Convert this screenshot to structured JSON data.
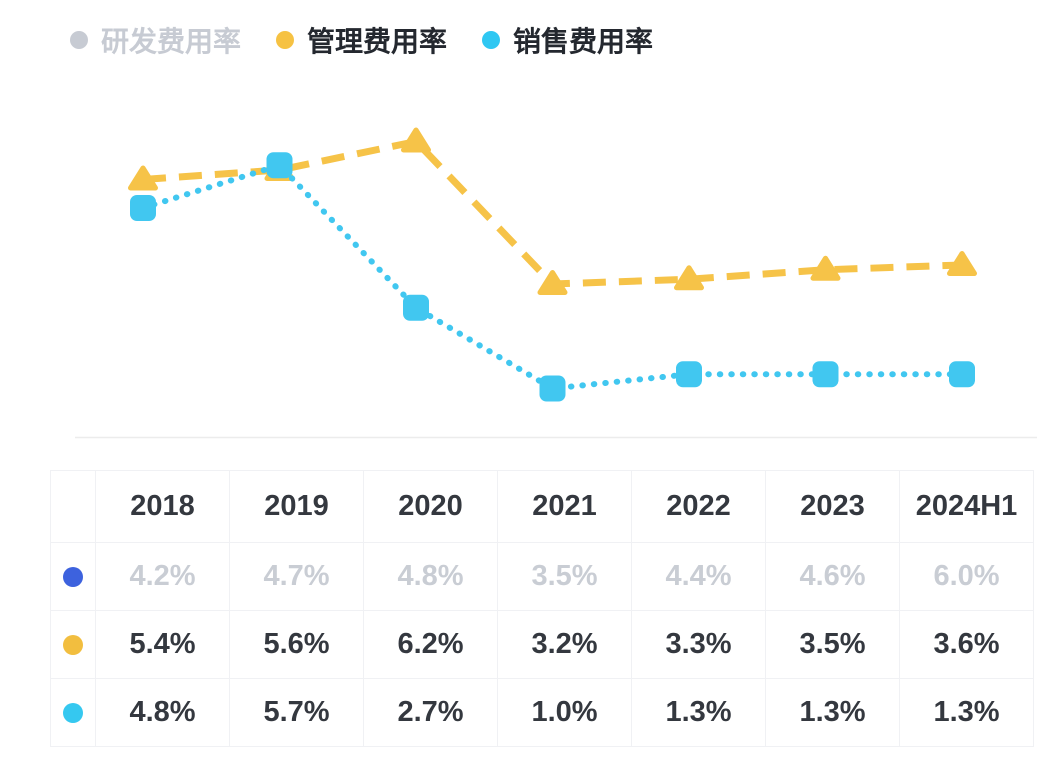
{
  "legend": {
    "items": [
      {
        "label": "研发费用率",
        "color": "#c7cbd3",
        "disabled": true
      },
      {
        "label": "管理费用率",
        "color": "#f6c243",
        "disabled": false
      },
      {
        "label": "销售费用率",
        "color": "#2fc7f2",
        "disabled": false
      }
    ]
  },
  "chart_data": {
    "type": "line",
    "categories": [
      "2018",
      "2019",
      "2020",
      "2021",
      "2022",
      "2023",
      "2024H1"
    ],
    "series": [
      {
        "name": "研发费用率",
        "values": [
          4.2,
          4.7,
          4.8,
          3.5,
          4.4,
          4.6,
          6.0
        ],
        "color": "#3d62de",
        "marker": "circle",
        "line": "solid",
        "visible": false
      },
      {
        "name": "管理费用率",
        "values": [
          5.4,
          5.6,
          6.2,
          3.2,
          3.3,
          3.5,
          3.6
        ],
        "color": "#f6c348",
        "marker": "triangle",
        "line": "dashed",
        "visible": true
      },
      {
        "name": "销售费用率",
        "values": [
          4.8,
          5.7,
          2.7,
          1.0,
          1.3,
          1.3,
          1.3
        ],
        "color": "#41c7f0",
        "marker": "square",
        "line": "dotted",
        "visible": true
      }
    ],
    "unit": "%",
    "ylim": [
      0,
      7.5
    ],
    "grid": false,
    "legend_position": "top-left",
    "baseline_color": "#ececec"
  },
  "table": {
    "columns": [
      "2018",
      "2019",
      "2020",
      "2021",
      "2022",
      "2023",
      "2024H1"
    ],
    "rows": [
      {
        "series": "研发费用率",
        "dot_color": "#3d62de",
        "muted": true,
        "values": [
          "4.2%",
          "4.7%",
          "4.8%",
          "3.5%",
          "4.4%",
          "4.6%",
          "6.0%"
        ]
      },
      {
        "series": "管理费用率",
        "dot_color": "#f2be3f",
        "muted": false,
        "values": [
          "5.4%",
          "5.6%",
          "6.2%",
          "3.2%",
          "3.3%",
          "3.5%",
          "3.6%"
        ]
      },
      {
        "series": "销售费用率",
        "dot_color": "#35c8f0",
        "muted": false,
        "values": [
          "4.8%",
          "5.7%",
          "2.7%",
          "1.0%",
          "1.3%",
          "1.3%",
          "1.3%"
        ]
      }
    ]
  },
  "colors": {
    "text": "#34383f",
    "muted_text": "#c9cdd4",
    "grid_line": "#f0f1f4"
  }
}
